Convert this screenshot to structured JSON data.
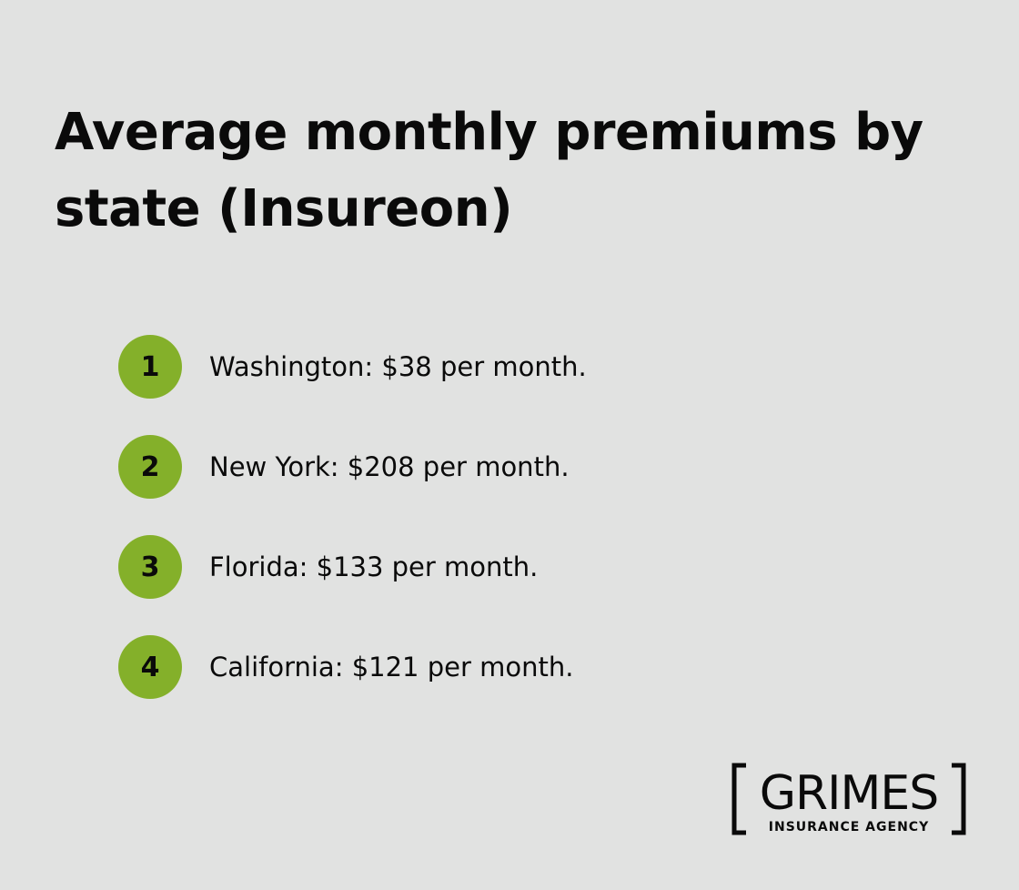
{
  "header": {
    "title": "Average monthly premiums by state (Insureon)"
  },
  "list": {
    "items": [
      {
        "number": "1",
        "text": "Washington: $38 per month."
      },
      {
        "number": "2",
        "text": "New York: $208 per month."
      },
      {
        "number": "3",
        "text": "Florida: $133 per month."
      },
      {
        "number": "4",
        "text": "California: $121 per month."
      }
    ]
  },
  "logo": {
    "name": "GRIMES",
    "tagline": "INSURANCE AGENCY"
  }
}
